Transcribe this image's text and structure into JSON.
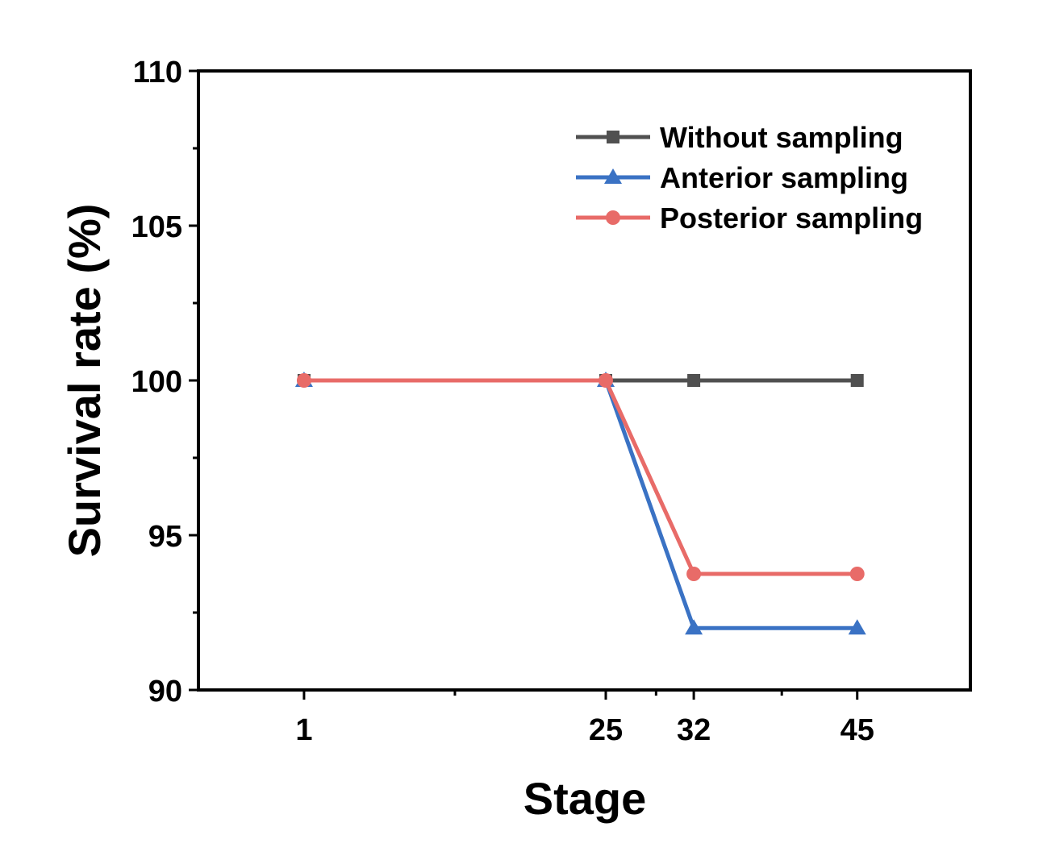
{
  "chart_data": {
    "type": "line",
    "xlabel": "Stage",
    "ylabel": "Survival rate (%)",
    "xlim": [
      -7.4,
      54
    ],
    "ylim": [
      90,
      110
    ],
    "xticks": [
      1,
      25,
      32,
      45
    ],
    "xminor_ticks": [
      13,
      29,
      39
    ],
    "yticks": [
      90,
      95,
      100,
      105,
      110
    ],
    "legend_position": "top-right",
    "grid": false,
    "series": [
      {
        "name": "Without sampling",
        "color": "#505050",
        "marker": "square",
        "points": [
          [
            1,
            100
          ],
          [
            25,
            100
          ],
          [
            32,
            100
          ],
          [
            45,
            100
          ]
        ]
      },
      {
        "name": "Anterior sampling",
        "color": "#3a72c4",
        "marker": "triangle",
        "points": [
          [
            1,
            100
          ],
          [
            25,
            100
          ],
          [
            32,
            92
          ],
          [
            45,
            92
          ]
        ]
      },
      {
        "name": "Posterior sampling",
        "color": "#e86b68",
        "marker": "circle",
        "points": [
          [
            1,
            100
          ],
          [
            25,
            100
          ],
          [
            32,
            93.75
          ],
          [
            45,
            93.75
          ]
        ]
      }
    ]
  }
}
